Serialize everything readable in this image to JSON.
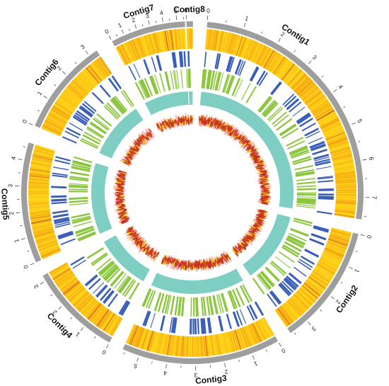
{
  "contigs": [
    {
      "name": "Contig1",
      "length": 7.6,
      "tick_labels": [
        "0",
        "1",
        "2",
        "3",
        "4",
        "5",
        "6",
        "7"
      ]
    },
    {
      "name": "Contig2",
      "length": 3.6,
      "tick_labels": [
        "0",
        "1",
        "2",
        "3"
      ]
    },
    {
      "name": "Contig3",
      "length": 5.6,
      "tick_labels": [
        "0",
        "1",
        "2",
        "3",
        "4",
        "5"
      ]
    },
    {
      "name": "Contig4",
      "length": 3.2,
      "tick_labels": [
        "0",
        "1",
        "2",
        "3"
      ]
    },
    {
      "name": "Contig5",
      "length": 4.7,
      "tick_labels": [
        "0",
        "1",
        "2",
        "3",
        "4"
      ]
    },
    {
      "name": "Contig6",
      "length": 3.3,
      "tick_labels": [
        "0",
        "1",
        "2",
        "3"
      ]
    },
    {
      "name": "Contig7",
      "length": 5.6,
      "tick_labels": [
        "0",
        "1",
        "2",
        "3",
        "4",
        "5"
      ]
    },
    {
      "name": "Contig8",
      "length": 0.35,
      "tick_labels": [
        "0"
      ]
    }
  ],
  "tracks": [
    "ideogram",
    "heatmap",
    "blue-features",
    "green-features",
    "gc-content",
    "line-plot"
  ],
  "colors": {
    "ideogram": "#9e9e9e",
    "heat_low": "#ffd21a",
    "heat_mid": "#f39c12",
    "heat_high": "#c0392b",
    "blue": "#3a5fb8",
    "green": "#8cc63f",
    "teal": "#7ecec4",
    "line_yellow": "#f5b800",
    "line_red": "#c0261d",
    "line_pink": "#f08080"
  }
}
